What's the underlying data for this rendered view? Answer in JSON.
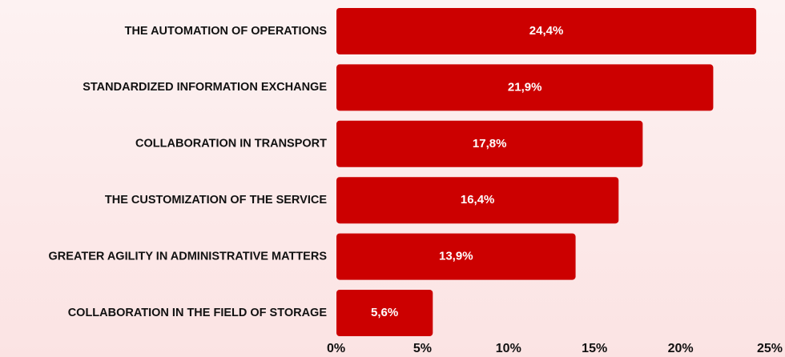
{
  "chart_data": {
    "type": "bar",
    "orientation": "horizontal",
    "categories": [
      "THE AUTOMATION OF OPERATIONS",
      "STANDARDIZED INFORMATION EXCHANGE",
      "COLLABORATION IN TRANSPORT",
      "THE CUSTOMIZATION OF THE SERVICE",
      "GREATER AGILITY IN ADMINISTRATIVE MATTERS",
      "COLLABORATION IN THE FIELD OF STORAGE"
    ],
    "values": [
      24.4,
      21.9,
      17.8,
      16.4,
      13.9,
      5.6
    ],
    "value_labels": [
      "24,4%",
      "21,9%",
      "17,8%",
      "16,4%",
      "13,9%",
      "5,6%"
    ],
    "color": "#cc0000",
    "xlim": [
      0,
      25
    ],
    "xticks": [
      {
        "value": 0,
        "label": "0%"
      },
      {
        "value": 5,
        "label": "5%"
      },
      {
        "value": 10,
        "label": "10%"
      },
      {
        "value": 15,
        "label": "15%"
      },
      {
        "value": 20,
        "label": "20%"
      },
      {
        "value": 25,
        "label": "25%"
      }
    ],
    "grid": false
  }
}
